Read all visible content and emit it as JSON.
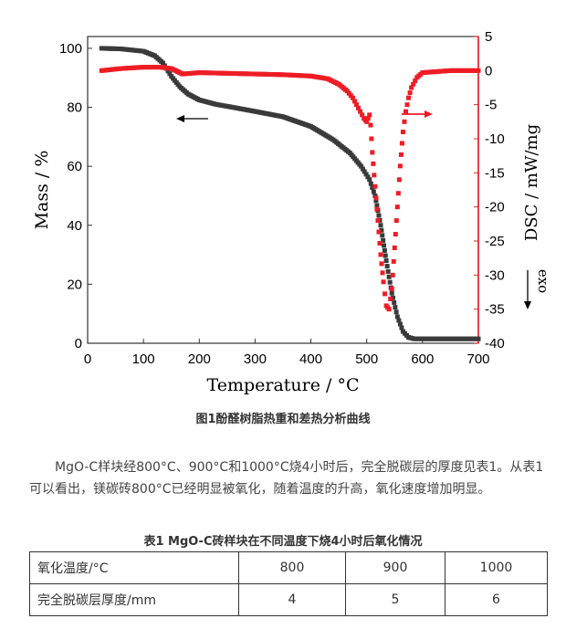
{
  "chart_data": {
    "type": "line",
    "xlabel": "Temperature / °C",
    "ylabel_left": "Mass / %",
    "ylabel_right": "DSC / mW/mg",
    "right_axis_note": "exo",
    "xlim": [
      0,
      700
    ],
    "ylim_left": [
      0,
      104
    ],
    "ylim_right": [
      -40,
      5
    ],
    "x_ticks": [
      "0",
      "100",
      "200",
      "300",
      "400",
      "500",
      "600",
      "700"
    ],
    "y_left_ticks": [
      "0",
      "20",
      "40",
      "60",
      "80",
      "100"
    ],
    "y_right_ticks": [
      "5",
      "0",
      "-5",
      "-10",
      "-15",
      "-20",
      "-25",
      "-30",
      "-35",
      "-40"
    ],
    "colors": {
      "mass": "#3a3a3a",
      "dsc": "#ee1c25"
    },
    "series": [
      {
        "axis": "left",
        "x": [
          25,
          60,
          100,
          120,
          135,
          150,
          165,
          180,
          200,
          230,
          260,
          300,
          350,
          400,
          440,
          470,
          490,
          505,
          515,
          525,
          535,
          545,
          555,
          565,
          575,
          585,
          600,
          650,
          700
        ],
        "y": [
          100,
          99.8,
          99,
          97.5,
          95,
          90.5,
          87,
          84.5,
          82.5,
          81,
          80,
          78.6,
          76.8,
          73.5,
          69,
          64.5,
          60,
          55.5,
          50,
          40,
          28,
          17,
          9,
          4,
          2,
          1.5,
          1.5,
          1.5,
          1.5
        ]
      },
      {
        "axis": "right",
        "x": [
          25,
          60,
          100,
          130,
          150,
          170,
          200,
          250,
          300,
          350,
          400,
          430,
          450,
          465,
          475,
          485,
          495,
          500,
          505,
          507,
          510,
          515,
          520,
          525,
          530,
          535,
          540,
          545,
          550,
          555,
          560,
          565,
          570,
          575,
          580,
          590,
          600,
          650,
          700
        ],
        "y": [
          0,
          0.3,
          0.5,
          0.5,
          0.3,
          -0.5,
          -0.3,
          -0.4,
          -0.5,
          -0.6,
          -0.8,
          -1.2,
          -2,
          -3,
          -4,
          -5.5,
          -7,
          -7.5,
          -6.5,
          -8,
          -12,
          -17,
          -22,
          -27,
          -31,
          -34.5,
          -35,
          -32,
          -26,
          -20,
          -14,
          -9,
          -6,
          -4,
          -2.5,
          -1,
          -0.3,
          0,
          0
        ]
      }
    ]
  },
  "figure_caption": "图1酚醛树脂热重和差热分析曲线",
  "paragraph": "MgO-C样块经800°C、900°C和1000°C烧4小时后，完全脱碳层的厚度见表1。从表1可以看出，镁碳砖800°C已经明显被氧化，随着温度的升高，氧化速度增加明显。",
  "table_caption": "表1 MgO-C砖样块在不同温度下烧4小时后氧化情况",
  "table": {
    "rows": [
      {
        "label": "氧化温度/°C",
        "values": [
          "800",
          "900",
          "1000"
        ]
      },
      {
        "label": "完全脱碳层厚度/mm",
        "values": [
          "4",
          "5",
          "6"
        ]
      }
    ]
  }
}
